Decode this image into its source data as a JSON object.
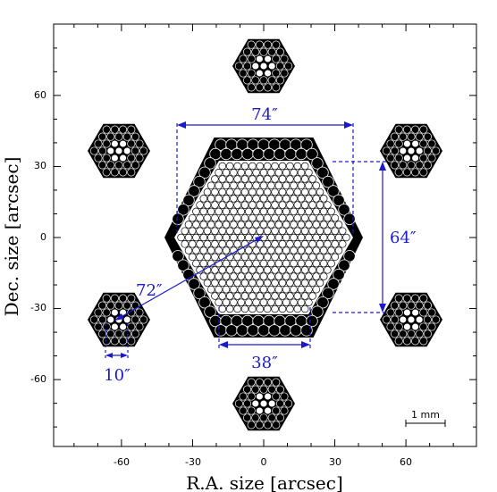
{
  "figure": {
    "axes": {
      "x_title": "R.A. size  [arcsec]",
      "y_title": "Dec. size  [arcsec]",
      "x_ticks": [
        "-60",
        "-30",
        "0",
        "30",
        "60"
      ],
      "y_ticks": [
        "60",
        "30",
        "0",
        "-30",
        "-60"
      ],
      "x_range": [
        -80,
        90
      ],
      "y_range": [
        -88,
        90
      ]
    },
    "dimensions": {
      "width": "74″",
      "height": "64″",
      "diagonal": "72″",
      "inner_edge": "38″",
      "bundle": "10″"
    },
    "scale_bar": "1 mm",
    "colors": {
      "annotation": "#1a1acc",
      "fibre": "#000000"
    },
    "sky_bundles": [
      "sky-bundle-top",
      "sky-bundle-top-left",
      "sky-bundle-top-right",
      "sky-bundle-bottom-left",
      "sky-bundle-bottom-right",
      "sky-bundle-bottom"
    ]
  }
}
